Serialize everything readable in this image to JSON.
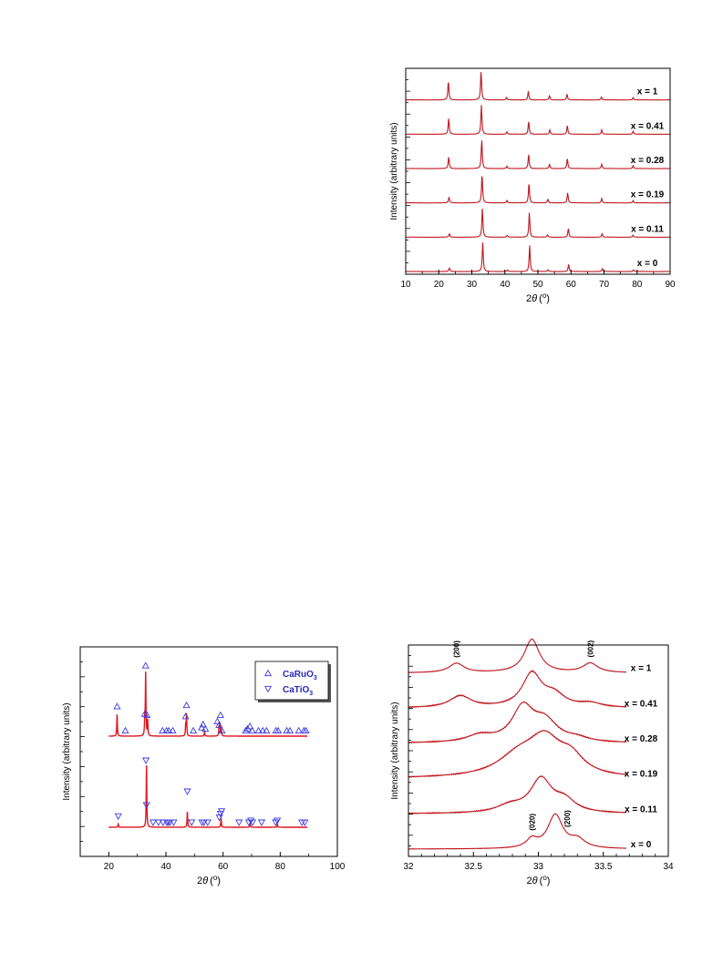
{
  "chart_data": [
    {
      "id": "xrd-full",
      "type": "line",
      "xlabel_symbol": "2",
      "xlabel_theta": "θ",
      "xlabel_unit_open": "(",
      "xlabel_unit_deg": "o",
      "xlabel_unit_close": ")",
      "ylabel": "Intensity (arbitrary units)",
      "xlim": [
        10,
        90
      ],
      "xticks": [
        "10",
        "20",
        "30",
        "40",
        "50",
        "60",
        "70",
        "80",
        "90"
      ],
      "line_color": "#c0161e",
      "stack_offset_note": "",
      "series": [
        {
          "label": "x = 0",
          "peaks": [
            [
              23.2,
              0.12
            ],
            [
              33.3,
              1.0
            ],
            [
              40.8,
              0.05
            ],
            [
              47.5,
              0.9
            ],
            [
              53.0,
              0.06
            ],
            [
              59.3,
              0.25
            ],
            [
              69.5,
              0.1
            ],
            [
              78.9,
              0.06
            ]
          ]
        },
        {
          "label": "x = 0.11",
          "peaks": [
            [
              23.2,
              0.12
            ],
            [
              33.2,
              1.0
            ],
            [
              40.7,
              0.06
            ],
            [
              47.4,
              0.85
            ],
            [
              52.9,
              0.08
            ],
            [
              59.2,
              0.3
            ],
            [
              69.4,
              0.12
            ],
            [
              78.8,
              0.07
            ]
          ]
        },
        {
          "label": "x = 0.19",
          "peaks": [
            [
              23.1,
              0.2
            ],
            [
              33.1,
              1.0
            ],
            [
              40.6,
              0.08
            ],
            [
              47.3,
              0.7
            ],
            [
              53.0,
              0.12
            ],
            [
              59.0,
              0.35
            ],
            [
              69.3,
              0.15
            ],
            [
              78.8,
              0.08
            ]
          ]
        },
        {
          "label": "x = 0.28",
          "peaks": [
            [
              23.0,
              0.4
            ],
            [
              33.0,
              1.0
            ],
            [
              40.6,
              0.08
            ],
            [
              47.2,
              0.5
            ],
            [
              53.5,
              0.15
            ],
            [
              58.9,
              0.35
            ],
            [
              69.3,
              0.15
            ],
            [
              78.8,
              0.1
            ]
          ]
        },
        {
          "label": "x = 0.41",
          "peaks": [
            [
              23.0,
              0.55
            ],
            [
              32.9,
              1.0
            ],
            [
              40.6,
              0.08
            ],
            [
              47.2,
              0.45
            ],
            [
              53.6,
              0.15
            ],
            [
              58.9,
              0.3
            ],
            [
              69.3,
              0.15
            ],
            [
              78.8,
              0.1
            ]
          ]
        },
        {
          "label": "x = 1",
          "peaks": [
            [
              22.9,
              0.65
            ],
            [
              32.8,
              1.0
            ],
            [
              40.5,
              0.08
            ],
            [
              47.1,
              0.3
            ],
            [
              53.5,
              0.15
            ],
            [
              58.8,
              0.2
            ],
            [
              69.2,
              0.1
            ],
            [
              78.8,
              0.08
            ]
          ]
        }
      ]
    },
    {
      "id": "xrd-reference",
      "type": "scatter",
      "xlabel_symbol": "2",
      "xlabel_theta": "θ",
      "xlabel_unit_open": "(",
      "xlabel_unit_deg": "o",
      "xlabel_unit_close": ")",
      "ylabel": "Intensity (arbitrary units)",
      "xlim": [
        10,
        100
      ],
      "xticks": [
        "20",
        "40",
        "60",
        "80",
        "100"
      ],
      "line_color": "#e0141c",
      "marker_color": "#3a3ae0",
      "legend": [
        {
          "name_main": "CaRuO",
          "name_sub": "3",
          "marker": "triangle-up"
        },
        {
          "name_main": "CaTiO",
          "name_sub": "3",
          "marker": "triangle-down"
        }
      ],
      "legend_position": "top-right",
      "series": [
        {
          "name": "CaRuO3",
          "peaks": [
            [
              22.9,
              0.35
            ],
            [
              32.6,
              0.25
            ],
            [
              32.9,
              1.0
            ],
            [
              33.6,
              0.25
            ],
            [
              46.9,
              0.15
            ],
            [
              47.2,
              0.35
            ],
            [
              53.5,
              0.08
            ],
            [
              58.6,
              0.15
            ],
            [
              58.9,
              0.2
            ],
            [
              59.4,
              0.1
            ]
          ],
          "markers_up": [
            [
              22.9,
              0.42
            ],
            [
              25.8,
              0.03
            ],
            [
              32.9,
              1.08
            ],
            [
              32.6,
              0.3
            ],
            [
              33.4,
              0.28
            ],
            [
              38.8,
              0.03
            ],
            [
              40.2,
              0.03
            ],
            [
              41.0,
              0.03
            ],
            [
              42.4,
              0.03
            ],
            [
              46.9,
              0.26
            ],
            [
              47.2,
              0.44
            ],
            [
              49.6,
              0.03
            ],
            [
              52.5,
              0.08
            ],
            [
              53.0,
              0.13
            ],
            [
              53.8,
              0.06
            ],
            [
              58.0,
              0.18
            ],
            [
              58.6,
              0.12
            ],
            [
              59.1,
              0.28
            ],
            [
              59.6,
              0.03
            ],
            [
              67.9,
              0.03
            ],
            [
              68.6,
              0.06
            ],
            [
              69.4,
              0.1
            ],
            [
              70.2,
              0.03
            ],
            [
              72.4,
              0.03
            ],
            [
              73.9,
              0.03
            ],
            [
              75.2,
              0.03
            ],
            [
              78.5,
              0.03
            ],
            [
              79.3,
              0.03
            ],
            [
              82.3,
              0.03
            ],
            [
              83.4,
              0.03
            ],
            [
              86.5,
              0.03
            ],
            [
              88.3,
              0.03
            ],
            [
              89.0,
              0.03
            ]
          ]
        },
        {
          "name": "CaTiO3",
          "peaks": [
            [
              23.3,
              0.05
            ],
            [
              33.2,
              1.0
            ],
            [
              47.5,
              0.25
            ],
            [
              59.3,
              0.15
            ],
            [
              69.5,
              0.06
            ],
            [
              79.0,
              0.05
            ]
          ],
          "markers_down": [
            [
              23.3,
              0.12
            ],
            [
              33.0,
              1.02
            ],
            [
              33.2,
              0.3
            ],
            [
              35.5,
              0.02
            ],
            [
              37.4,
              0.02
            ],
            [
              39.0,
              0.02
            ],
            [
              40.3,
              0.02
            ],
            [
              40.8,
              0.02
            ],
            [
              41.4,
              0.02
            ],
            [
              42.7,
              0.02
            ],
            [
              47.5,
              0.52
            ],
            [
              49.0,
              0.02
            ],
            [
              52.6,
              0.02
            ],
            [
              53.3,
              0.02
            ],
            [
              54.6,
              0.02
            ],
            [
              58.7,
              0.1
            ],
            [
              59.1,
              0.16
            ],
            [
              59.5,
              0.2
            ],
            [
              65.6,
              0.02
            ],
            [
              69.0,
              0.02
            ],
            [
              69.7,
              0.05
            ],
            [
              70.3,
              0.02
            ],
            [
              73.5,
              0.02
            ],
            [
              78.4,
              0.02
            ],
            [
              79.0,
              0.05
            ],
            [
              87.6,
              0.02
            ],
            [
              88.6,
              0.02
            ]
          ]
        }
      ]
    },
    {
      "id": "xrd-zoom",
      "type": "line",
      "xlabel_symbol": "2",
      "xlabel_theta": "θ",
      "xlabel_unit_open": "(",
      "xlabel_unit_deg": "o",
      "xlabel_unit_close": ")",
      "ylabel": "Intensity (arbitrary units)",
      "xlim": [
        32,
        34
      ],
      "xticks": [
        "32",
        "32.5",
        "33",
        "33.5",
        "34"
      ],
      "line_color": "#c0161e",
      "series": [
        {
          "label": "x = 0",
          "peaks": [
            [
              32.95,
              0.25,
              0.05
            ],
            [
              33.13,
              1.0,
              0.07
            ],
            [
              33.3,
              0.25,
              0.07
            ]
          ]
        },
        {
          "label": "x = 0.11",
          "peaks": [
            [
              32.78,
              0.2,
              0.12
            ],
            [
              33.02,
              1.0,
              0.1
            ],
            [
              33.2,
              0.35,
              0.1
            ]
          ]
        },
        {
          "label": "x = 0.19",
          "peaks": [
            [
              32.85,
              0.6,
              0.2
            ],
            [
              33.05,
              1.0,
              0.15
            ],
            [
              33.25,
              0.5,
              0.12
            ]
          ]
        },
        {
          "label": "x = 0.28",
          "peaks": [
            [
              32.55,
              0.2,
              0.12
            ],
            [
              32.88,
              1.0,
              0.1
            ],
            [
              33.05,
              0.6,
              0.12
            ],
            [
              33.3,
              0.1,
              0.1
            ]
          ]
        },
        {
          "label": "x = 0.41",
          "peaks": [
            [
              32.4,
              0.35,
              0.1
            ],
            [
              32.95,
              1.0,
              0.09
            ],
            [
              33.12,
              0.35,
              0.1
            ],
            [
              33.4,
              0.12,
              0.1
            ]
          ]
        },
        {
          "label": "x = 1",
          "peaks": [
            [
              32.37,
              0.28,
              0.07
            ],
            [
              32.95,
              1.0,
              0.07
            ],
            [
              33.4,
              0.28,
              0.07
            ]
          ]
        }
      ],
      "annotations": [
        {
          "text": "(200)",
          "x": 32.37,
          "series": 5
        },
        {
          "text": "(002)",
          "x": 33.4,
          "series": 5
        },
        {
          "text": "(020)",
          "x": 32.95,
          "series": 0
        },
        {
          "text": "(200)",
          "x": 33.22,
          "series": 0
        }
      ]
    }
  ]
}
